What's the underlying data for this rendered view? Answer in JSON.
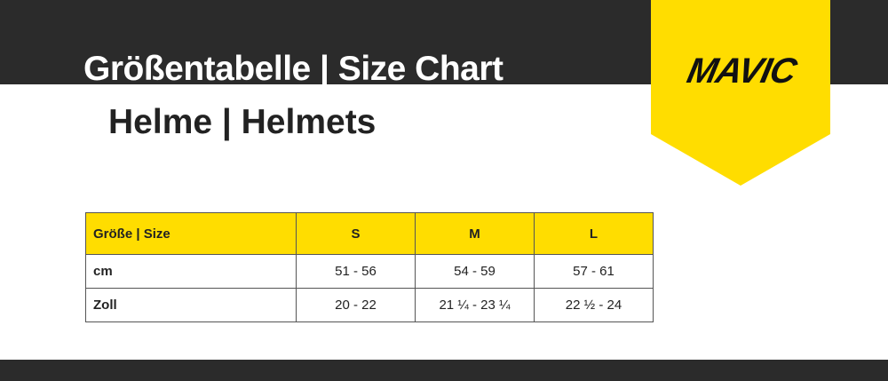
{
  "header": {
    "title": "Größentabelle | Size Chart",
    "subtitle": "Helme | Helmets"
  },
  "logo": {
    "text": "MAVIC",
    "color": "#ffdd00"
  },
  "colors": {
    "dark": "#2b2b2b",
    "accent": "#ffdd00"
  },
  "table": {
    "columns": [
      "Größe | Size",
      "S",
      "M",
      "L"
    ],
    "rows": [
      {
        "label": "cm",
        "values": [
          "51 - 56",
          "54 - 59",
          "57 - 61"
        ]
      },
      {
        "label": "Zoll",
        "values": [
          "20 - 22",
          "21 ¼ - 23 ¼",
          "22 ½ - 24"
        ]
      }
    ]
  }
}
